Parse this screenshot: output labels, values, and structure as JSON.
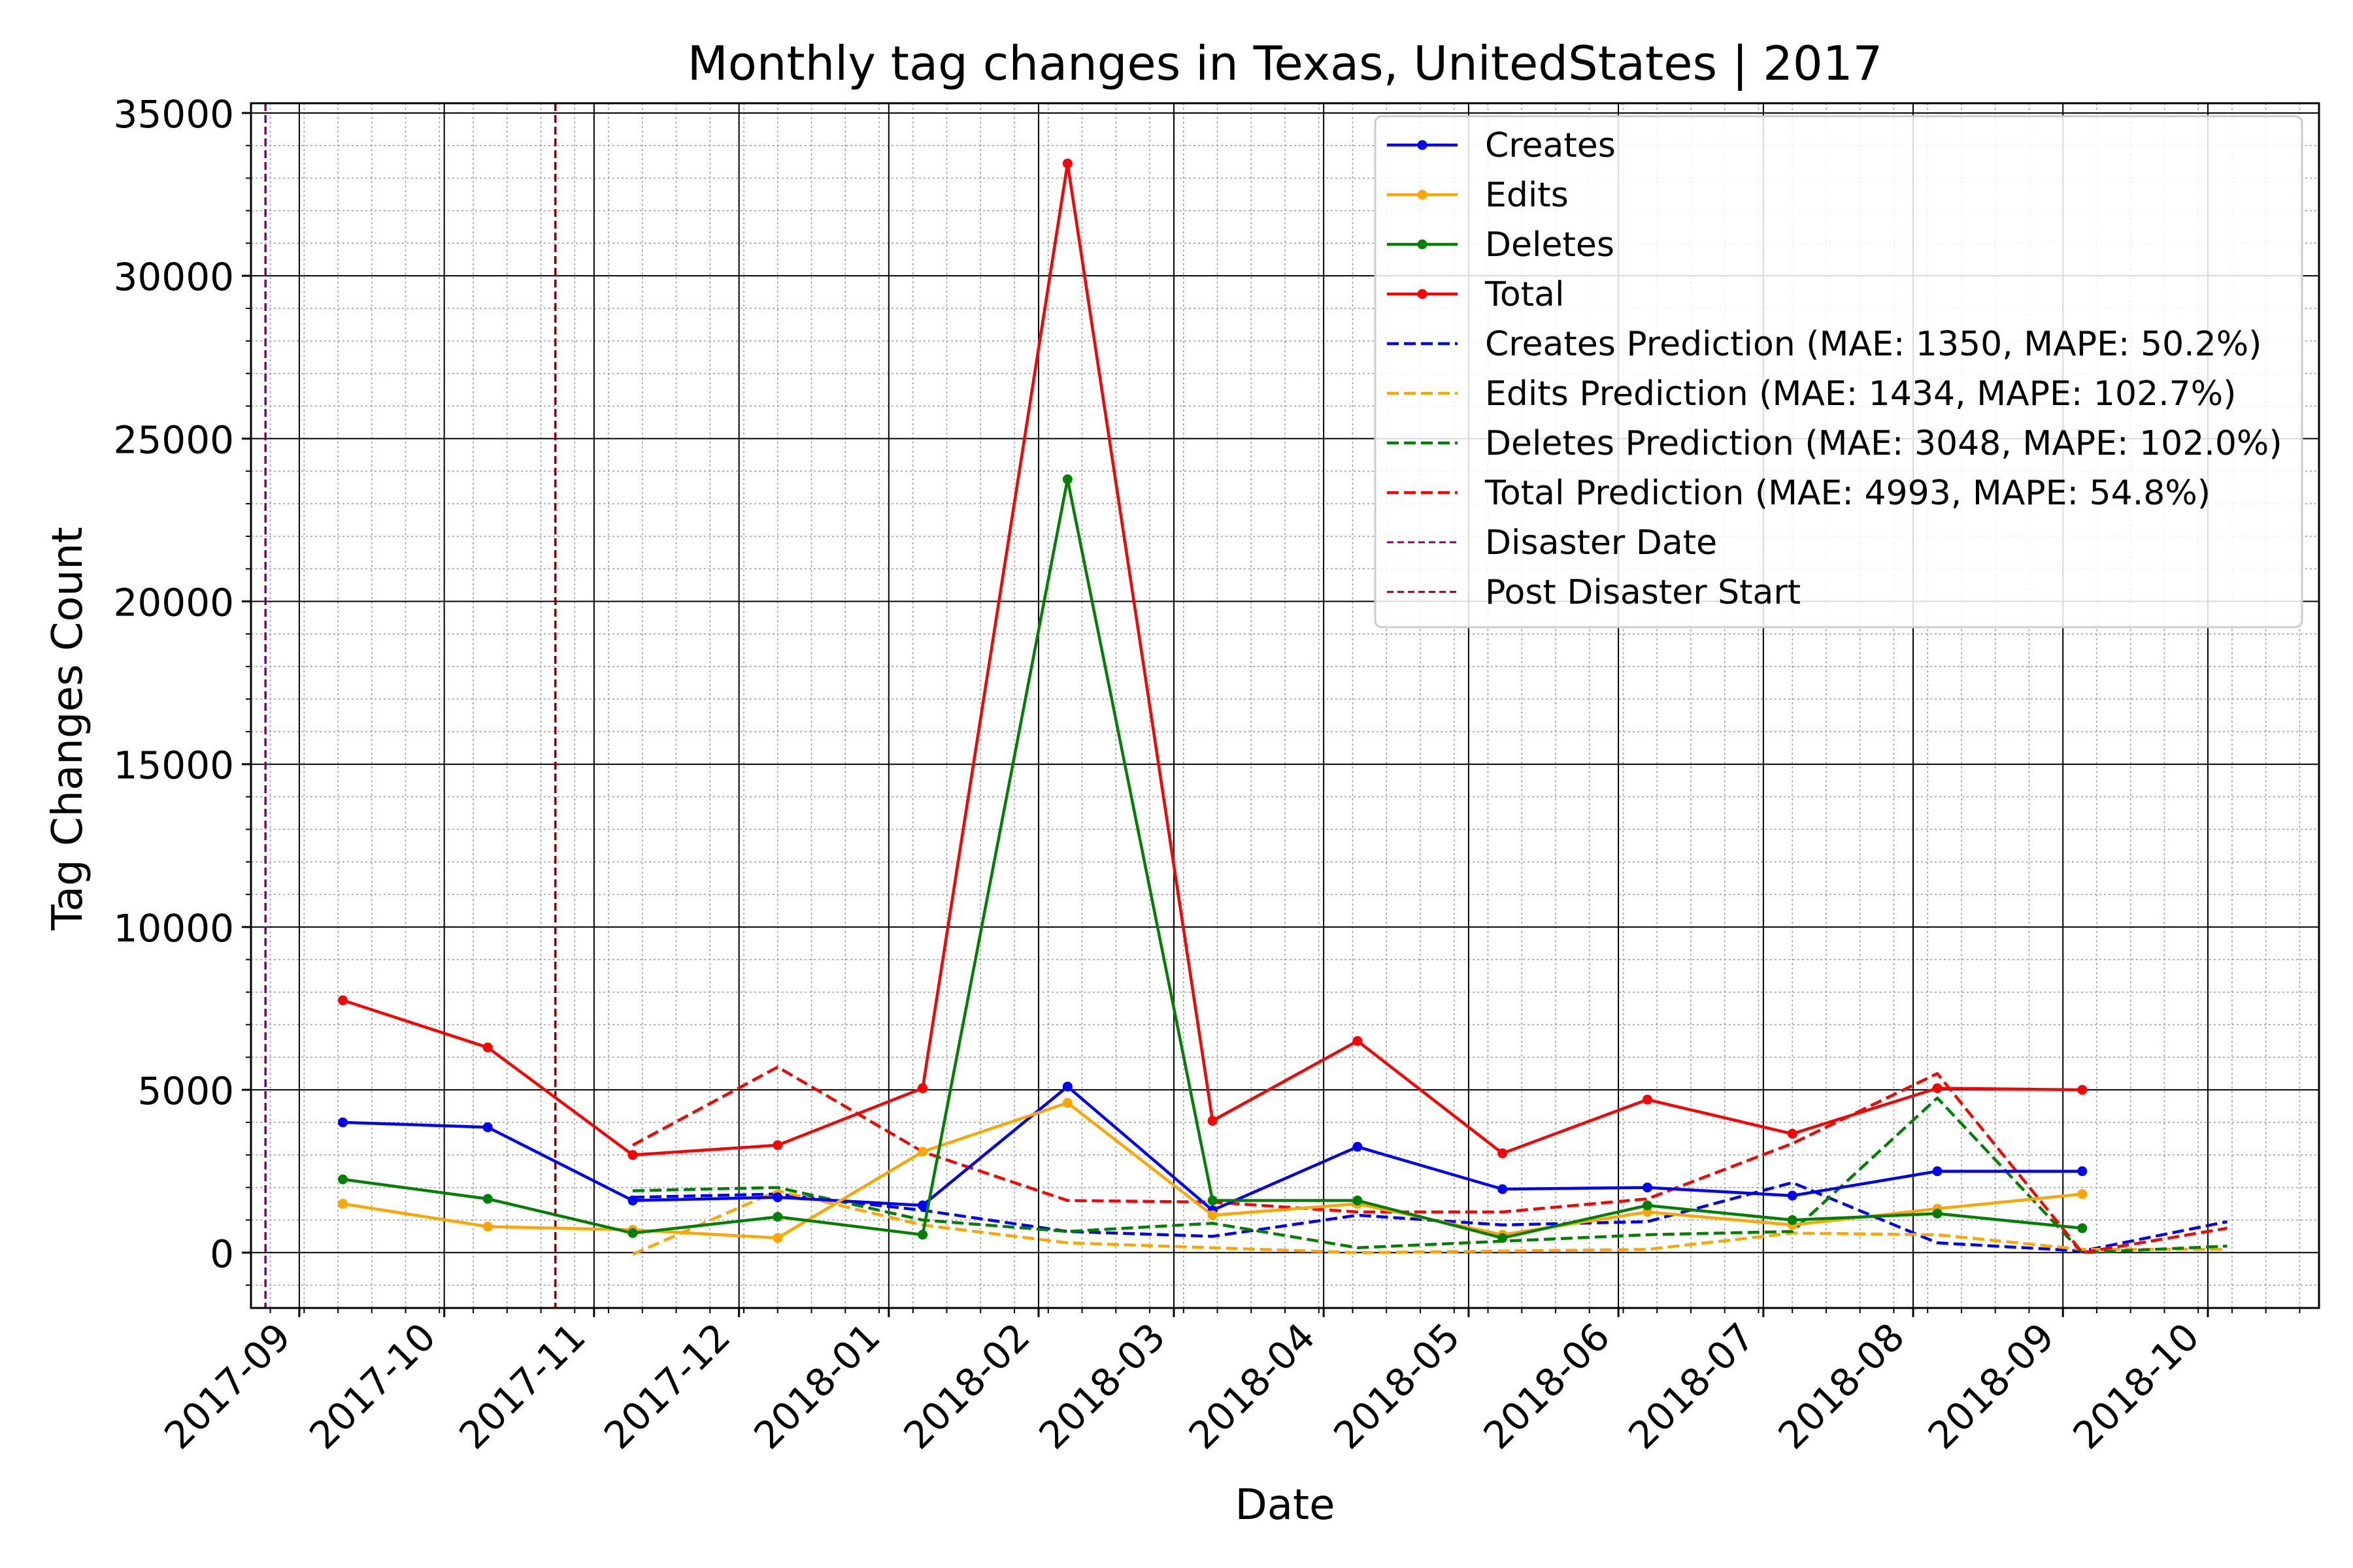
{
  "chart_data": {
    "type": "line",
    "title": "Monthly tag changes in Texas, UnitedStates | 2017",
    "xlabel": "Date",
    "ylabel": "Tag Changes Count",
    "ylim": [
      -1700,
      35300
    ],
    "xlim": [
      "2017-08-22",
      "2018-10-24"
    ],
    "grid": "major and minor",
    "legend_position": "top-right",
    "y_ticks": [
      "0",
      "5000",
      "10000",
      "15000",
      "20000",
      "25000",
      "30000",
      "35000"
    ],
    "y_tick_values": [
      0,
      5000,
      10000,
      15000,
      20000,
      25000,
      30000,
      35000
    ],
    "x_ticks": [
      "2017-09",
      "2017-10",
      "2017-11",
      "2017-12",
      "2018-01",
      "2018-02",
      "2018-03",
      "2018-04",
      "2018-05",
      "2018-06",
      "2018-07",
      "2018-08",
      "2018-09",
      "2018-10"
    ],
    "x_tick_dates": [
      "2017-09-01",
      "2017-10-01",
      "2017-11-01",
      "2017-12-01",
      "2018-01-01",
      "2018-02-01",
      "2018-03-01",
      "2018-04-01",
      "2018-05-01",
      "2018-06-01",
      "2018-07-01",
      "2018-08-01",
      "2018-09-01",
      "2018-10-01"
    ],
    "series": [
      {
        "name": "Creates",
        "color": "#0000ff",
        "style": "solid",
        "markers": true,
        "x": [
          "2017-09-10",
          "2017-10-10",
          "2017-11-09",
          "2017-12-09",
          "2018-01-08",
          "2018-02-07",
          "2018-03-09",
          "2018-04-08",
          "2018-05-08",
          "2018-06-07",
          "2018-07-07",
          "2018-08-06",
          "2018-09-05"
        ],
        "y": [
          4000,
          3850,
          1600,
          1700,
          1450,
          5100,
          1300,
          3250,
          1950,
          2000,
          1750,
          2500,
          2500
        ]
      },
      {
        "name": "Edits",
        "color": "#ffa500",
        "style": "solid",
        "markers": true,
        "x": [
          "2017-09-10",
          "2017-10-10",
          "2017-11-09",
          "2017-12-09",
          "2018-01-08",
          "2018-02-07",
          "2018-03-09",
          "2018-04-08",
          "2018-05-08",
          "2018-06-07",
          "2018-07-07",
          "2018-08-06",
          "2018-09-05"
        ],
        "y": [
          1500,
          800,
          700,
          450,
          3100,
          4600,
          1150,
          1500,
          550,
          1250,
          850,
          1350,
          1800
        ]
      },
      {
        "name": "Deletes",
        "color": "#008000",
        "style": "solid",
        "markers": true,
        "x": [
          "2017-09-10",
          "2017-10-10",
          "2017-11-09",
          "2017-12-09",
          "2018-01-08",
          "2018-02-07",
          "2018-03-09",
          "2018-04-08",
          "2018-05-08",
          "2018-06-07",
          "2018-07-07",
          "2018-08-06",
          "2018-09-05"
        ],
        "y": [
          2250,
          1650,
          600,
          1100,
          550,
          23750,
          1600,
          1600,
          450,
          1450,
          1000,
          1200,
          750
        ]
      },
      {
        "name": "Total",
        "color": "#ff0000",
        "style": "solid",
        "markers": true,
        "x": [
          "2017-09-10",
          "2017-10-10",
          "2017-11-09",
          "2017-12-09",
          "2018-01-08",
          "2018-02-07",
          "2018-03-09",
          "2018-04-08",
          "2018-05-08",
          "2018-06-07",
          "2018-07-07",
          "2018-08-06",
          "2018-09-05"
        ],
        "y": [
          7750,
          6300,
          3000,
          3300,
          5050,
          33450,
          4050,
          6500,
          3050,
          4700,
          3650,
          5050,
          5000
        ]
      },
      {
        "name": "Creates Prediction (MAE: 1350, MAPE: 50.2%)",
        "color": "#0000ff",
        "style": "dashed",
        "markers": false,
        "x": [
          "2017-11-09",
          "2017-12-09",
          "2018-01-08",
          "2018-02-07",
          "2018-03-09",
          "2018-04-08",
          "2018-05-08",
          "2018-06-07",
          "2018-07-07",
          "2018-08-06",
          "2018-09-05",
          "2018-10-05"
        ],
        "y": [
          1700,
          1800,
          1300,
          650,
          500,
          1150,
          850,
          950,
          2150,
          300,
          50,
          950
        ]
      },
      {
        "name": "Edits Prediction (MAE: 1434, MAPE: 102.7%)",
        "color": "#ffa500",
        "style": "dashed",
        "markers": false,
        "x": [
          "2017-11-09",
          "2017-12-09",
          "2018-01-08",
          "2018-02-07",
          "2018-03-09",
          "2018-04-08",
          "2018-05-08",
          "2018-06-07",
          "2018-07-07",
          "2018-08-06",
          "2018-09-05",
          "2018-10-05"
        ],
        "y": [
          -50,
          1900,
          850,
          300,
          150,
          0,
          50,
          100,
          600,
          550,
          100,
          100
        ]
      },
      {
        "name": "Deletes Prediction (MAE: 3048, MAPE: 102.0%)",
        "color": "#008000",
        "style": "dashed",
        "markers": false,
        "x": [
          "2017-11-09",
          "2017-12-09",
          "2018-01-08",
          "2018-02-07",
          "2018-03-09",
          "2018-04-08",
          "2018-05-08",
          "2018-06-07",
          "2018-07-07",
          "2018-08-06",
          "2018-09-05",
          "2018-10-05"
        ],
        "y": [
          1900,
          2000,
          1000,
          650,
          900,
          150,
          350,
          550,
          650,
          4750,
          0,
          200
        ]
      },
      {
        "name": "Total Prediction (MAE: 4993, MAPE: 54.8%)",
        "color": "#ff0000",
        "style": "dashed",
        "markers": false,
        "x": [
          "2017-11-09",
          "2017-12-09",
          "2018-01-08",
          "2018-02-07",
          "2018-03-09",
          "2018-04-08",
          "2018-05-08",
          "2018-06-07",
          "2018-07-07",
          "2018-08-06",
          "2018-09-05",
          "2018-10-05"
        ],
        "y": [
          3300,
          5700,
          3100,
          1600,
          1550,
          1250,
          1250,
          1650,
          3350,
          5500,
          0,
          750
        ]
      }
    ],
    "vlines": [
      {
        "name": "Disaster Date",
        "color": "#800080",
        "date": "2017-08-25"
      },
      {
        "name": "Post Disaster Start",
        "color": "#8b0000",
        "date": "2017-10-24"
      }
    ]
  }
}
